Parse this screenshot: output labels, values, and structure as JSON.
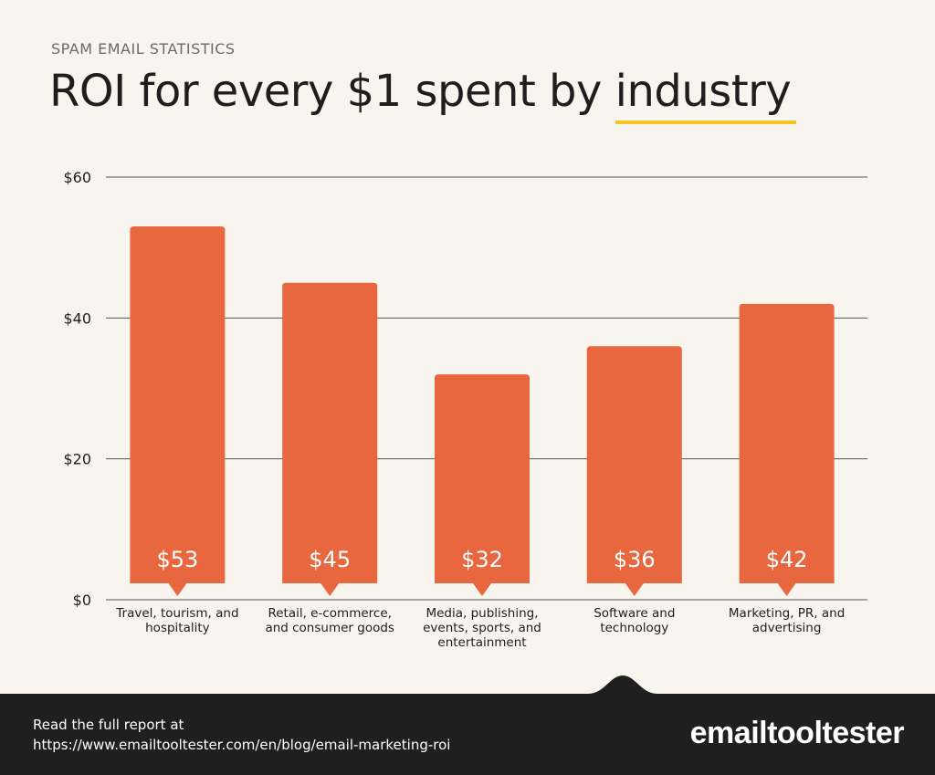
{
  "header": {
    "eyebrow": "SPAM EMAIL STATISTICS",
    "title_prefix": "ROI for every $1 spent by ",
    "title_highlight": "industry"
  },
  "colors": {
    "bar": "#e8673e",
    "highlight": "#f5c528",
    "background": "#f8f4ee",
    "footer": "#1f1f1f"
  },
  "chart_data": {
    "type": "bar",
    "categories": [
      [
        "Travel, tourism, and",
        "hospitality"
      ],
      [
        "Retail, e-commerce,",
        "and consumer goods"
      ],
      [
        "Media, publishing,",
        "events, sports, and",
        "entertainment"
      ],
      [
        "Software and",
        "technology"
      ],
      [
        "Marketing, PR, and",
        "advertising"
      ]
    ],
    "values": [
      53,
      45,
      32,
      36,
      42
    ],
    "value_labels": [
      "$53",
      "$45",
      "$32",
      "$36",
      "$42"
    ],
    "yticks": [
      0,
      20,
      40,
      60
    ],
    "ytick_labels": [
      "$0",
      "$20",
      "$40",
      "$60"
    ],
    "ylim": [
      0,
      60
    ],
    "grid": true
  },
  "footer": {
    "line1": "Read the full report at",
    "line2": "https://www.emailtooltester.com/en/blog/email-marketing-roi",
    "logo": "emailtooltester"
  }
}
